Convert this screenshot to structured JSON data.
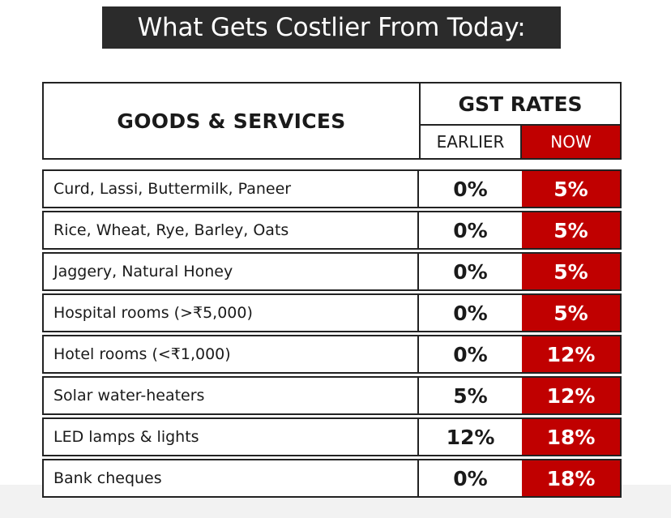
{
  "title": "What Gets Costlier From Today:",
  "header": {
    "goods_label": "GOODS & SERVICES",
    "rates_label": "GST RATES",
    "earlier_label": "EARLIER",
    "now_label": "NOW"
  },
  "colors": {
    "accent": "#c00000",
    "title_bg": "#2b2b2b"
  },
  "rows": [
    {
      "item": "Curd, Lassi, Buttermilk, Paneer",
      "earlier": "0%",
      "now": "5%"
    },
    {
      "item": "Rice, Wheat, Rye, Barley, Oats",
      "earlier": "0%",
      "now": "5%"
    },
    {
      "item": "Jaggery, Natural Honey",
      "earlier": "0%",
      "now": "5%"
    },
    {
      "item": "Hospital rooms (>₹5,000)",
      "earlier": "0%",
      "now": "5%"
    },
    {
      "item": "Hotel rooms (<₹1,000)",
      "earlier": "0%",
      "now": "12%"
    },
    {
      "item": "Solar water-heaters",
      "earlier": "5%",
      "now": "12%"
    },
    {
      "item": "LED lamps & lights",
      "earlier": "12%",
      "now": "18%"
    },
    {
      "item": "Bank cheques",
      "earlier": "0%",
      "now": "18%"
    }
  ]
}
